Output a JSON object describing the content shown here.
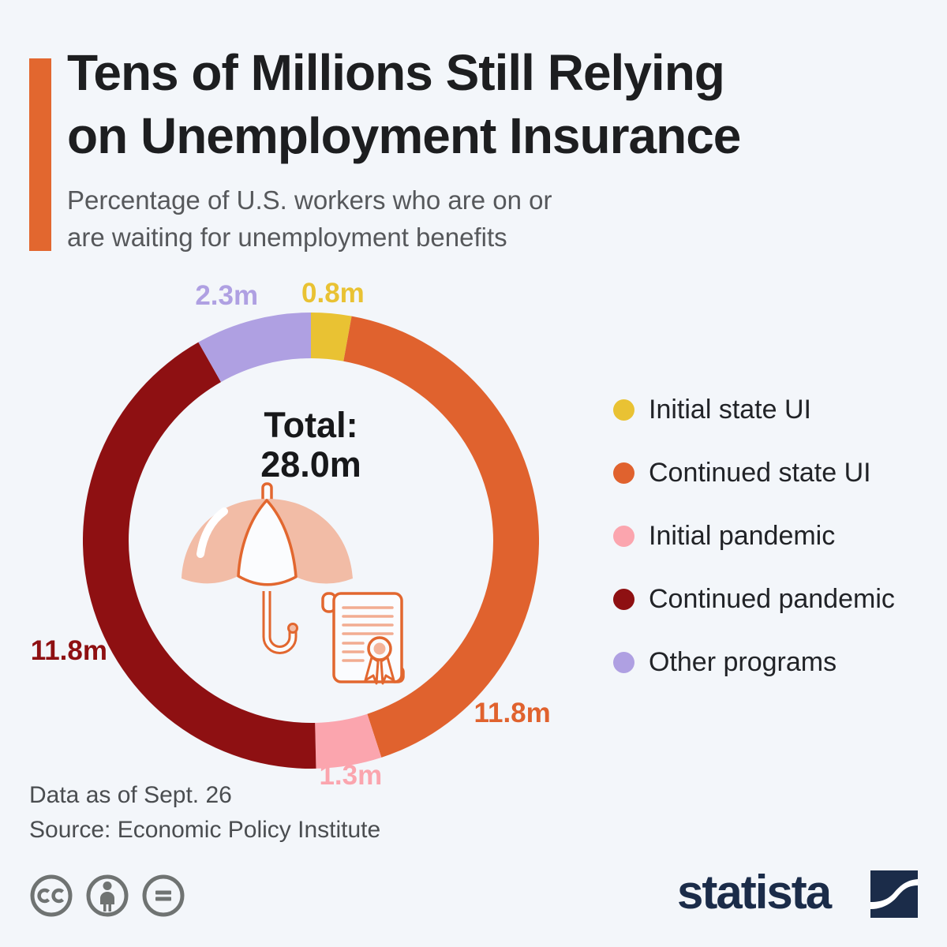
{
  "header": {
    "accent_color": "#E2672F",
    "title_line1": "Tens of Millions Still Relying",
    "title_line2": "on Unemployment Insurance",
    "subtitle_line1": "Percentage of U.S. workers who are on or",
    "subtitle_line2": "are waiting for unemployment benefits"
  },
  "chart_data": {
    "type": "pie",
    "subtype": "donut",
    "units": "millions of workers",
    "direction": "clockwise",
    "start_angle_deg": 0,
    "legend_position": "right",
    "total": 28.0,
    "total_label": "Total:",
    "total_value": "28.0m",
    "slices": [
      {
        "label": "Initial state UI",
        "value": 0.8,
        "display_value": "0.8m",
        "color": "#E9C233"
      },
      {
        "label": "Continued state UI",
        "value": 11.8,
        "display_value": "11.8m",
        "color": "#E0622E"
      },
      {
        "label": "Initial pandemic",
        "value": 1.3,
        "display_value": "1.3m",
        "color": "#FBA5AE"
      },
      {
        "label": "Continued pandemic",
        "value": 11.8,
        "display_value": "11.8m",
        "color": "#8E1012"
      },
      {
        "label": "Other programs",
        "value": 2.3,
        "display_value": "2.3m",
        "color": "#AFA0E2"
      }
    ],
    "center_icons": [
      "umbrella-icon",
      "insurance-certificate-icon"
    ]
  },
  "footer": {
    "data_note": "Data as of Sept. 26",
    "source": "Source: Economic Policy Institute"
  },
  "branding": {
    "wordmark": "statista",
    "wordmark_color": "#1B2C49",
    "license_icons": [
      "creative-commons-icon",
      "attribution-icon",
      "no-derivatives-icon"
    ]
  },
  "background_color": "#F3F6FA"
}
